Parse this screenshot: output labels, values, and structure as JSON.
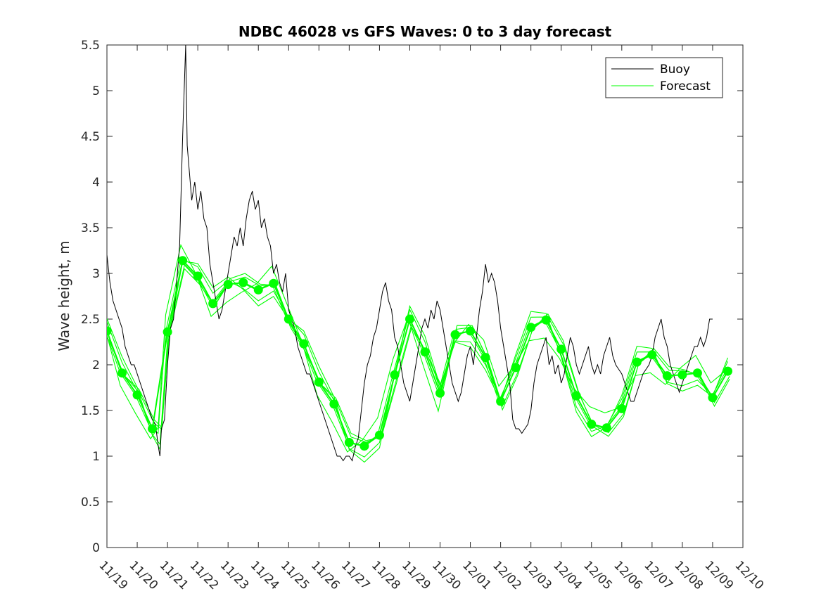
{
  "chart_data": {
    "type": "line",
    "title": "NDBC 46028 vs GFS Waves: 0 to 3 day forecast",
    "xlabel": "",
    "ylabel": "Wave height, m",
    "xlim": [
      0,
      21
    ],
    "ylim": [
      0,
      5.5
    ],
    "x_unit": "days since 11/19",
    "x_ticks": [
      0,
      1,
      2,
      3,
      4,
      5,
      6,
      7,
      8,
      9,
      10,
      11,
      12,
      13,
      14,
      15,
      16,
      17,
      18,
      19,
      20,
      21
    ],
    "x_tick_labels": [
      "11/19",
      "11/20",
      "11/21",
      "11/22",
      "11/23",
      "11/24",
      "11/25",
      "11/26",
      "11/27",
      "11/28",
      "11/29",
      "11/30",
      "12/01",
      "12/02",
      "12/03",
      "12/04",
      "12/05",
      "12/06",
      "12/07",
      "12/08",
      "12/09",
      "12/10"
    ],
    "y_ticks": [
      0,
      0.5,
      1,
      1.5,
      2,
      2.5,
      3,
      3.5,
      4,
      4.5,
      5,
      5.5
    ],
    "y_tick_labels": [
      "0",
      "0.5",
      "1",
      "1.5",
      "2",
      "2.5",
      "3",
      "3.5",
      "4",
      "4.5",
      "5",
      "5.5"
    ],
    "legend": {
      "position": "top-right",
      "entries": [
        "Buoy",
        "Forecast"
      ]
    },
    "colors": {
      "buoy": "#000000",
      "forecast": "#00ff00"
    },
    "series": [
      {
        "name": "Buoy",
        "style": "line",
        "points": [
          [
            0.0,
            3.2
          ],
          [
            0.1,
            2.9
          ],
          [
            0.2,
            2.7
          ],
          [
            0.3,
            2.6
          ],
          [
            0.4,
            2.5
          ],
          [
            0.5,
            2.4
          ],
          [
            0.6,
            2.2
          ],
          [
            0.7,
            2.1
          ],
          [
            0.8,
            2.0
          ],
          [
            0.9,
            2.0
          ],
          [
            1.0,
            1.9
          ],
          [
            1.1,
            1.8
          ],
          [
            1.2,
            1.7
          ],
          [
            1.3,
            1.6
          ],
          [
            1.4,
            1.5
          ],
          [
            1.5,
            1.4
          ],
          [
            1.6,
            1.35
          ],
          [
            1.7,
            1.1
          ],
          [
            1.75,
            1.0
          ],
          [
            1.8,
            1.3
          ],
          [
            1.9,
            1.4
          ],
          [
            2.0,
            2.0
          ],
          [
            2.1,
            2.4
          ],
          [
            2.2,
            2.5
          ],
          [
            2.3,
            2.9
          ],
          [
            2.4,
            3.3
          ],
          [
            2.5,
            4.5
          ],
          [
            2.55,
            5.0
          ],
          [
            2.6,
            5.5
          ],
          [
            2.65,
            4.4
          ],
          [
            2.7,
            4.2
          ],
          [
            2.8,
            3.8
          ],
          [
            2.9,
            4.0
          ],
          [
            3.0,
            3.7
          ],
          [
            3.1,
            3.9
          ],
          [
            3.2,
            3.6
          ],
          [
            3.3,
            3.5
          ],
          [
            3.4,
            3.1
          ],
          [
            3.5,
            2.9
          ],
          [
            3.6,
            2.7
          ],
          [
            3.7,
            2.5
          ],
          [
            3.8,
            2.6
          ],
          [
            3.9,
            2.8
          ],
          [
            4.0,
            3.0
          ],
          [
            4.1,
            3.2
          ],
          [
            4.2,
            3.4
          ],
          [
            4.3,
            3.3
          ],
          [
            4.4,
            3.5
          ],
          [
            4.5,
            3.3
          ],
          [
            4.6,
            3.6
          ],
          [
            4.7,
            3.8
          ],
          [
            4.8,
            3.9
          ],
          [
            4.9,
            3.7
          ],
          [
            5.0,
            3.8
          ],
          [
            5.1,
            3.5
          ],
          [
            5.2,
            3.6
          ],
          [
            5.3,
            3.4
          ],
          [
            5.4,
            3.3
          ],
          [
            5.5,
            3.0
          ],
          [
            5.6,
            3.1
          ],
          [
            5.7,
            2.9
          ],
          [
            5.8,
            2.8
          ],
          [
            5.9,
            3.0
          ],
          [
            6.0,
            2.6
          ],
          [
            6.1,
            2.5
          ],
          [
            6.2,
            2.4
          ],
          [
            6.3,
            2.2
          ],
          [
            6.4,
            2.1
          ],
          [
            6.5,
            2.0
          ],
          [
            6.6,
            1.9
          ],
          [
            6.7,
            1.9
          ],
          [
            6.8,
            1.8
          ],
          [
            6.9,
            1.7
          ],
          [
            7.0,
            1.6
          ],
          [
            7.1,
            1.5
          ],
          [
            7.2,
            1.4
          ],
          [
            7.3,
            1.3
          ],
          [
            7.4,
            1.2
          ],
          [
            7.5,
            1.1
          ],
          [
            7.6,
            1.0
          ],
          [
            7.7,
            1.0
          ],
          [
            7.8,
            0.95
          ],
          [
            7.9,
            1.0
          ],
          [
            8.0,
            1.0
          ],
          [
            8.1,
            0.95
          ],
          [
            8.2,
            1.1
          ],
          [
            8.3,
            1.2
          ],
          [
            8.4,
            1.5
          ],
          [
            8.5,
            1.8
          ],
          [
            8.6,
            2.0
          ],
          [
            8.7,
            2.1
          ],
          [
            8.8,
            2.3
          ],
          [
            8.9,
            2.4
          ],
          [
            9.0,
            2.6
          ],
          [
            9.1,
            2.8
          ],
          [
            9.2,
            2.9
          ],
          [
            9.3,
            2.7
          ],
          [
            9.4,
            2.6
          ],
          [
            9.5,
            2.3
          ],
          [
            9.6,
            2.2
          ],
          [
            9.7,
            2.0
          ],
          [
            9.8,
            1.8
          ],
          [
            9.9,
            1.7
          ],
          [
            10.0,
            1.6
          ],
          [
            10.1,
            1.8
          ],
          [
            10.2,
            2.0
          ],
          [
            10.3,
            2.2
          ],
          [
            10.4,
            2.4
          ],
          [
            10.5,
            2.5
          ],
          [
            10.6,
            2.4
          ],
          [
            10.7,
            2.6
          ],
          [
            10.8,
            2.5
          ],
          [
            10.9,
            2.7
          ],
          [
            11.0,
            2.6
          ],
          [
            11.1,
            2.4
          ],
          [
            11.2,
            2.2
          ],
          [
            11.3,
            2.0
          ],
          [
            11.4,
            1.8
          ],
          [
            11.5,
            1.7
          ],
          [
            11.6,
            1.6
          ],
          [
            11.7,
            1.7
          ],
          [
            11.8,
            1.9
          ],
          [
            11.9,
            2.1
          ],
          [
            12.0,
            2.2
          ],
          [
            12.1,
            2.0
          ],
          [
            12.2,
            2.3
          ],
          [
            12.3,
            2.6
          ],
          [
            12.4,
            2.8
          ],
          [
            12.5,
            3.1
          ],
          [
            12.6,
            2.9
          ],
          [
            12.7,
            3.0
          ],
          [
            12.8,
            2.9
          ],
          [
            12.9,
            2.7
          ],
          [
            13.0,
            2.4
          ],
          [
            13.1,
            2.2
          ],
          [
            13.2,
            2.0
          ],
          [
            13.3,
            1.8
          ],
          [
            13.4,
            1.4
          ],
          [
            13.5,
            1.3
          ],
          [
            13.6,
            1.3
          ],
          [
            13.7,
            1.25
          ],
          [
            13.8,
            1.3
          ],
          [
            13.9,
            1.35
          ],
          [
            14.0,
            1.5
          ],
          [
            14.1,
            1.8
          ],
          [
            14.2,
            2.0
          ],
          [
            14.3,
            2.1
          ],
          [
            14.4,
            2.2
          ],
          [
            14.5,
            2.3
          ],
          [
            14.6,
            2.0
          ],
          [
            14.7,
            2.1
          ],
          [
            14.8,
            1.9
          ],
          [
            14.9,
            2.0
          ],
          [
            15.0,
            1.8
          ],
          [
            15.1,
            1.9
          ],
          [
            15.2,
            2.1
          ],
          [
            15.3,
            2.3
          ],
          [
            15.4,
            2.2
          ],
          [
            15.5,
            2.0
          ],
          [
            15.6,
            1.9
          ],
          [
            15.7,
            2.0
          ],
          [
            15.8,
            2.1
          ],
          [
            15.9,
            2.2
          ],
          [
            16.0,
            2.0
          ],
          [
            16.1,
            1.9
          ],
          [
            16.2,
            2.0
          ],
          [
            16.3,
            1.9
          ],
          [
            16.4,
            2.1
          ],
          [
            16.5,
            2.2
          ],
          [
            16.6,
            2.3
          ],
          [
            16.7,
            2.1
          ],
          [
            16.8,
            2.0
          ],
          [
            16.9,
            1.95
          ],
          [
            17.0,
            1.9
          ],
          [
            17.1,
            1.8
          ],
          [
            17.2,
            1.7
          ],
          [
            17.3,
            1.6
          ],
          [
            17.4,
            1.6
          ],
          [
            17.5,
            1.7
          ],
          [
            17.6,
            1.8
          ],
          [
            17.7,
            1.9
          ],
          [
            17.8,
            1.95
          ],
          [
            17.9,
            2.0
          ],
          [
            18.0,
            2.1
          ],
          [
            18.1,
            2.3
          ],
          [
            18.2,
            2.4
          ],
          [
            18.3,
            2.5
          ],
          [
            18.4,
            2.3
          ],
          [
            18.5,
            2.2
          ],
          [
            18.6,
            2.0
          ],
          [
            18.7,
            1.9
          ],
          [
            18.8,
            1.8
          ],
          [
            18.9,
            1.7
          ],
          [
            19.0,
            1.8
          ],
          [
            19.1,
            1.9
          ],
          [
            19.2,
            2.0
          ],
          [
            19.3,
            2.1
          ],
          [
            19.4,
            2.2
          ],
          [
            19.5,
            2.2
          ],
          [
            19.6,
            2.3
          ],
          [
            19.7,
            2.2
          ],
          [
            19.8,
            2.3
          ],
          [
            19.9,
            2.5
          ],
          [
            20.0,
            2.5
          ]
        ]
      },
      {
        "name": "Forecast",
        "style": "line",
        "members": [
          [
            [
              0,
              2.37
            ],
            [
              0.5,
              1.91
            ],
            [
              1.0,
              1.67
            ],
            [
              1.5,
              1.3
            ],
            [
              1.75,
              1.25
            ],
            [
              2.0,
              2.36
            ],
            [
              2.5,
              3.14
            ],
            [
              3.0,
              2.97
            ],
            [
              3.5,
              2.67
            ],
            [
              4.0,
              2.88
            ],
            [
              4.5,
              2.9
            ],
            [
              5.0,
              2.82
            ],
            [
              5.5,
              2.89
            ],
            [
              6.0,
              2.5
            ],
            [
              6.5,
              2.23
            ],
            [
              7.0,
              1.81
            ],
            [
              7.5,
              1.57
            ],
            [
              8.0,
              1.15
            ],
            [
              8.5,
              1.11
            ],
            [
              9.0,
              1.23
            ],
            [
              9.5,
              1.89
            ],
            [
              10.0,
              2.5
            ],
            [
              10.5,
              2.14
            ],
            [
              11.0,
              1.69
            ],
            [
              11.5,
              2.33
            ],
            [
              12.0,
              2.37
            ],
            [
              12.5,
              2.08
            ],
            [
              13.0,
              1.6
            ],
            [
              13.5,
              1.97
            ],
            [
              14.0,
              2.41
            ],
            [
              14.5,
              2.49
            ],
            [
              15.0,
              2.17
            ],
            [
              15.5,
              1.66
            ],
            [
              16.0,
              1.35
            ],
            [
              16.5,
              1.31
            ],
            [
              17.0,
              1.52
            ],
            [
              17.5,
              2.03
            ],
            [
              18.0,
              2.11
            ],
            [
              18.5,
              1.88
            ],
            [
              19.0,
              1.89
            ],
            [
              19.5,
              1.91
            ],
            [
              20.0,
              1.64
            ],
            [
              20.5,
              1.93
            ]
          ]
        ],
        "markers": [
          [
            0,
            2.37
          ],
          [
            0.5,
            1.91
          ],
          [
            1.0,
            1.67
          ],
          [
            1.5,
            1.3
          ],
          [
            2.0,
            2.36
          ],
          [
            2.5,
            3.14
          ],
          [
            3.0,
            2.97
          ],
          [
            3.5,
            2.67
          ],
          [
            4.0,
            2.88
          ],
          [
            4.5,
            2.9
          ],
          [
            5.0,
            2.82
          ],
          [
            5.5,
            2.89
          ],
          [
            6.0,
            2.5
          ],
          [
            6.5,
            2.23
          ],
          [
            7.0,
            1.81
          ],
          [
            7.5,
            1.57
          ],
          [
            8.0,
            1.15
          ],
          [
            8.5,
            1.11
          ],
          [
            9.0,
            1.23
          ],
          [
            9.5,
            1.89
          ],
          [
            10.0,
            2.5
          ],
          [
            10.5,
            2.14
          ],
          [
            11.0,
            1.69
          ],
          [
            11.5,
            2.33
          ],
          [
            12.0,
            2.37
          ],
          [
            12.5,
            2.08
          ],
          [
            13.0,
            1.6
          ],
          [
            13.5,
            1.97
          ],
          [
            14.0,
            2.41
          ],
          [
            14.5,
            2.49
          ],
          [
            15.0,
            2.17
          ],
          [
            15.5,
            1.66
          ],
          [
            16.0,
            1.35
          ],
          [
            16.5,
            1.31
          ],
          [
            17.0,
            1.52
          ],
          [
            17.5,
            2.03
          ],
          [
            18.0,
            2.11
          ],
          [
            18.5,
            1.88
          ],
          [
            19.0,
            1.89
          ],
          [
            19.5,
            1.91
          ],
          [
            20.0,
            1.64
          ],
          [
            20.5,
            1.93
          ]
        ]
      }
    ]
  }
}
